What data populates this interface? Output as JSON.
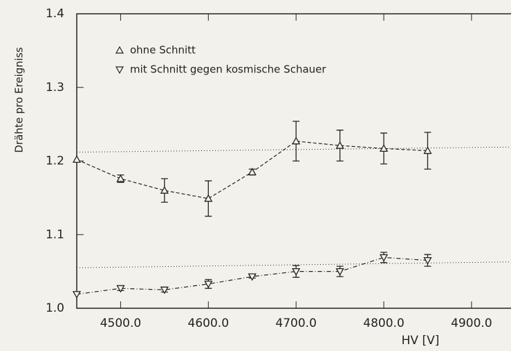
{
  "chart_data": {
    "type": "errorbar",
    "ylabel": "Drähte pro Ereigniss",
    "xlabel": "HV [V]",
    "legend": "top-left",
    "xlim": [
      4450,
      4945
    ],
    "ylim": [
      1.0,
      1.4
    ],
    "xticks": [
      {
        "value": 4500,
        "label": "4500.0"
      },
      {
        "value": 4600,
        "label": "4600.0"
      },
      {
        "value": 4700,
        "label": "4700.0"
      },
      {
        "value": 4800,
        "label": "4800.0"
      },
      {
        "value": 4900,
        "label": "4900.0"
      }
    ],
    "yticks": [
      {
        "value": 1.0,
        "label": "1.0"
      },
      1.1,
      1.2,
      1.3,
      1.4
    ],
    "series": [
      {
        "name": "ohne Schnitt",
        "color": "#222222",
        "marker": "up",
        "x": [
          4450,
          4500,
          4550,
          4600,
          4650,
          4700,
          4750,
          4800,
          4850
        ],
        "values": [
          1.202,
          1.176,
          1.16,
          1.149,
          1.185,
          1.227,
          1.221,
          1.217,
          1.214
        ],
        "errors": [
          null,
          0.005,
          0.016,
          0.024,
          0.004,
          0.027,
          0.021,
          0.021,
          0.025
        ],
        "fit": {
          "x": [
            4450,
            4945
          ],
          "values": [
            1.212,
            1.219
          ]
        }
      },
      {
        "name": "mit Schnitt gegen kosmische Schauer",
        "color": "#222222",
        "marker": "down",
        "x": [
          4450,
          4500,
          4550,
          4600,
          4650,
          4700,
          4750,
          4800,
          4850
        ],
        "values": [
          1.019,
          1.027,
          1.025,
          1.033,
          1.043,
          1.05,
          1.05,
          1.069,
          1.065
        ],
        "errors": [
          null,
          0.003,
          0.003,
          0.006,
          0.002,
          0.008,
          0.007,
          0.007,
          0.008
        ],
        "fit": {
          "x": [
            4450,
            4945
          ],
          "values": [
            1.055,
            1.063
          ]
        }
      }
    ]
  }
}
